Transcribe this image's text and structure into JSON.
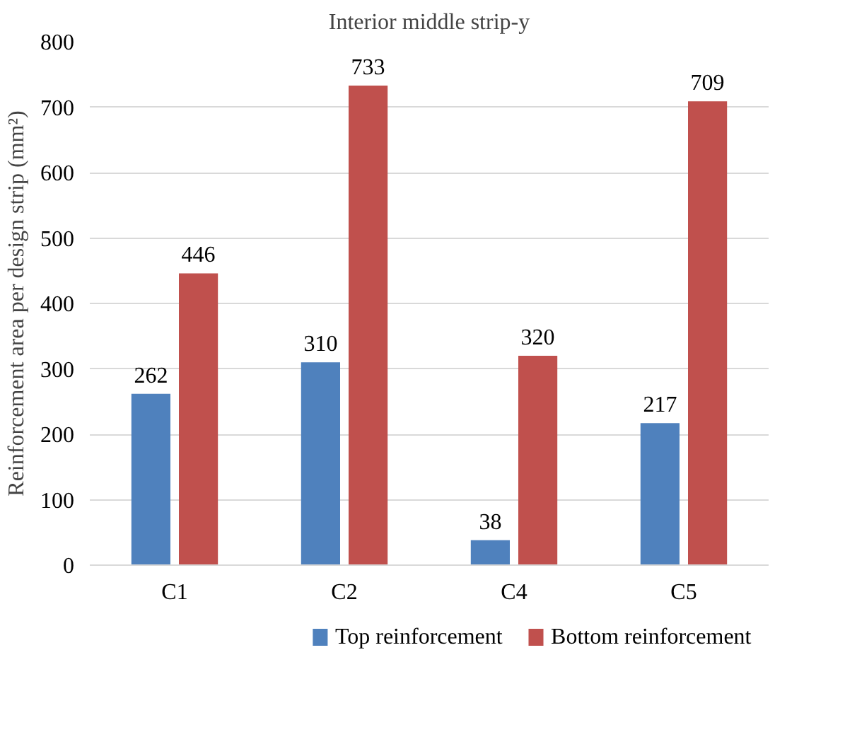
{
  "chart_data": {
    "type": "bar",
    "title": "Interior middle strip-y",
    "ylabel": "Reinforcement area per design strip (mm²)",
    "categories": [
      "C1",
      "C2",
      "C4",
      "C5"
    ],
    "series": [
      {
        "name": "Top reinforcement",
        "color": "#4f81bd",
        "values": [
          262,
          310,
          38,
          217
        ]
      },
      {
        "name": "Bottom reinforcement",
        "color": "#c0504d",
        "values": [
          446,
          733,
          320,
          709
        ]
      }
    ],
    "ylim": [
      0,
      800
    ],
    "yticks": [
      0,
      100,
      200,
      300,
      400,
      500,
      600,
      700,
      800
    ],
    "grid": "y",
    "legend": "bottom",
    "data_labels": true
  }
}
